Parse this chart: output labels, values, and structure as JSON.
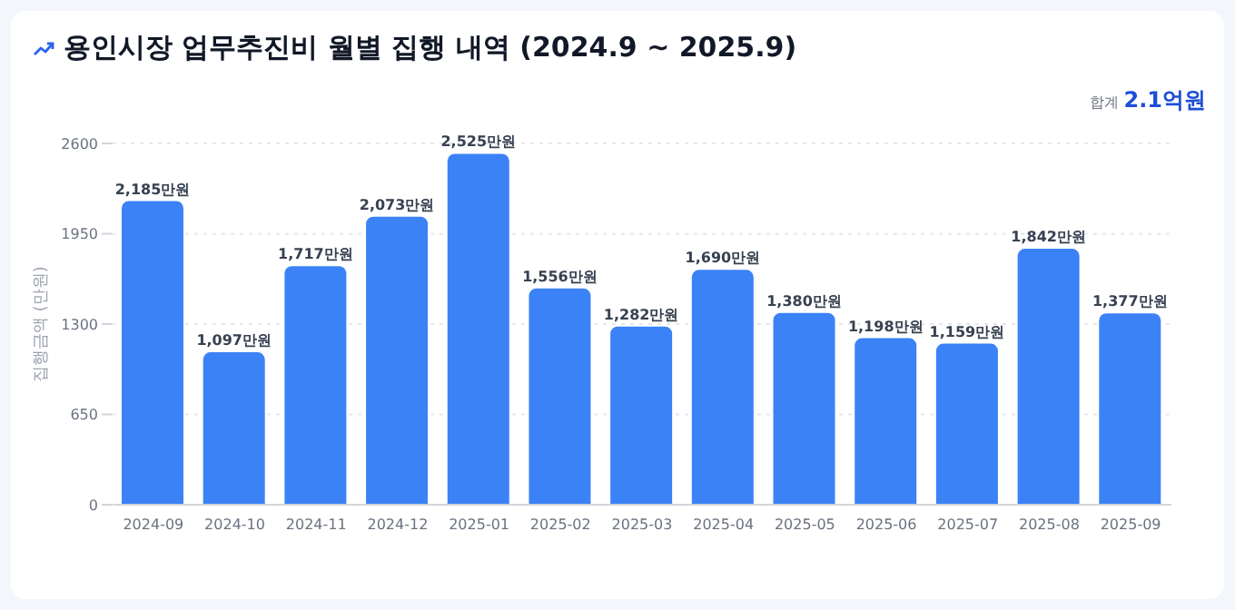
{
  "chart_data": {
    "type": "bar",
    "title": "용인시장 업무추진비 월별 집행 내역 (2024.9 ~ 2025.9)",
    "ylabel": "집행금액 (만원)",
    "annotations": [
      "합계 2.1억원"
    ],
    "categories": [
      "2024-09",
      "2024-10",
      "2024-11",
      "2024-12",
      "2025-01",
      "2025-02",
      "2025-03",
      "2025-04",
      "2025-05",
      "2025-06",
      "2025-07",
      "2025-08",
      "2025-09"
    ],
    "values": [
      2185,
      1097,
      1717,
      2073,
      2525,
      1556,
      1282,
      1690,
      1380,
      1198,
      1159,
      1842,
      1377
    ],
    "value_labels": [
      "2,185만원",
      "1,097만원",
      "1,717만원",
      "2,073만원",
      "2,525만원",
      "1,556만원",
      "1,282만원",
      "1,690만원",
      "1,380만원",
      "1,198만원",
      "1,159만원",
      "1,842만원",
      "1,377만원"
    ],
    "color": "#3b82f6",
    "ylim": [
      0,
      2600
    ],
    "yticks": [
      0,
      650,
      1300,
      1950,
      2600
    ],
    "grid": "y",
    "legend": false
  }
}
